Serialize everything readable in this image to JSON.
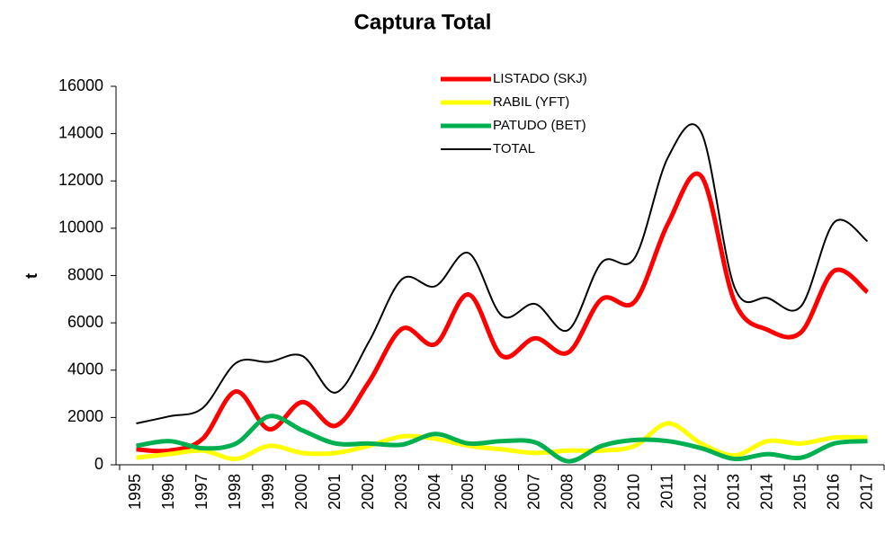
{
  "chart_data": {
    "type": "line",
    "title": "Captura Total",
    "y_label": "t",
    "categories": [
      "1995",
      "1996",
      "1997",
      "1998",
      "1999",
      "2000",
      "2001",
      "2002",
      "2003",
      "2004",
      "2005",
      "2006",
      "2007",
      "2008",
      "2009",
      "2010",
      "2011",
      "2012",
      "2013",
      "2014",
      "2015",
      "2016",
      "2017"
    ],
    "series": [
      {
        "name": "LISTADO (SKJ)",
        "color": "#ff0000",
        "width": 5,
        "values": [
          650,
          600,
          1100,
          3100,
          1500,
          2650,
          1650,
          3500,
          5750,
          5100,
          7200,
          4600,
          5350,
          4750,
          7000,
          6900,
          10200,
          12200,
          6900,
          5700,
          5600,
          8200,
          7300
        ]
      },
      {
        "name": "RABIL (YFT)",
        "color": "#ffff00",
        "width": 5,
        "values": [
          300,
          450,
          600,
          250,
          800,
          500,
          500,
          800,
          1200,
          1100,
          800,
          650,
          500,
          600,
          600,
          800,
          1750,
          900,
          400,
          1000,
          900,
          1150,
          1150
        ]
      },
      {
        "name": "PATUDO (BET)",
        "color": "#00b050",
        "width": 5,
        "values": [
          800,
          1000,
          700,
          900,
          2050,
          1450,
          900,
          900,
          850,
          1300,
          900,
          1000,
          950,
          150,
          800,
          1050,
          1000,
          700,
          250,
          450,
          300,
          900,
          1000
        ]
      },
      {
        "name": "TOTAL",
        "color": "#000000",
        "width": 2,
        "values": [
          1750,
          2050,
          2400,
          4300,
          4350,
          4600,
          3050,
          5200,
          7850,
          7550,
          8950,
          6300,
          6800,
          5700,
          8550,
          8750,
          13000,
          14050,
          7500,
          7050,
          6700,
          10250,
          9450
        ]
      }
    ],
    "ylim": [
      0,
      16000
    ],
    "yticks": [
      0,
      2000,
      4000,
      6000,
      8000,
      10000,
      12000,
      14000,
      16000
    ],
    "legend": "top",
    "grid": false
  }
}
